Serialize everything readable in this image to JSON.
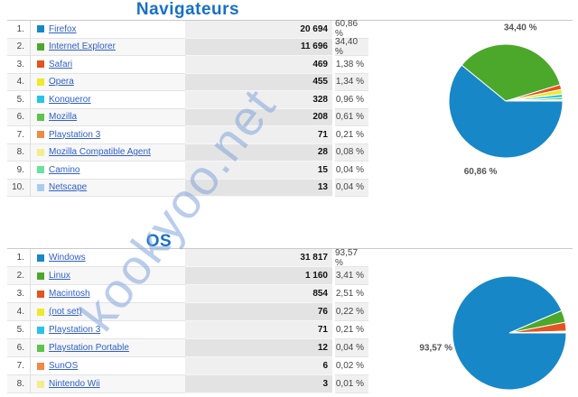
{
  "watermark": {
    "text": "kookyoo.net",
    "color": "rgba(129,164,218,0.55)"
  },
  "sections": [
    {
      "title": "Navigateurs",
      "rows": [
        {
          "rank": "1.",
          "name": "Firefox",
          "count": "20 694",
          "percent": "60,86 %",
          "color": "#1787C8"
        },
        {
          "rank": "2.",
          "name": "Internet Explorer",
          "count": "11 696",
          "percent": "34,40 %",
          "color": "#4CA82B"
        },
        {
          "rank": "3.",
          "name": "Safari",
          "count": "469",
          "percent": "1,38 %",
          "color": "#E55320"
        },
        {
          "rank": "4.",
          "name": "Opera",
          "count": "455",
          "percent": "1,34 %",
          "color": "#EEE929"
        },
        {
          "rank": "5.",
          "name": "Konqueror",
          "count": "328",
          "percent": "0,96 %",
          "color": "#28C4E8"
        },
        {
          "rank": "6.",
          "name": "Mozilla",
          "count": "208",
          "percent": "0,61 %",
          "color": "#5BC44D"
        },
        {
          "rank": "7.",
          "name": "Playstation 3",
          "count": "71",
          "percent": "0,21 %",
          "color": "#F18A47"
        },
        {
          "rank": "8.",
          "name": "Mozilla Compatible Agent",
          "count": "28",
          "percent": "0,08 %",
          "color": "#F2EE8C"
        },
        {
          "rank": "9.",
          "name": "Camino",
          "count": "15",
          "percent": "0,04 %",
          "color": "#66E39E"
        },
        {
          "rank": "10.",
          "name": "Netscape",
          "count": "13",
          "percent": "0,04 %",
          "color": "#A8CCF0"
        }
      ]
    },
    {
      "title": "OS",
      "rows": [
        {
          "rank": "1.",
          "name": "Windows",
          "count": "31 817",
          "percent": "93,57 %",
          "color": "#1787C8"
        },
        {
          "rank": "2.",
          "name": "Linux",
          "count": "1 160",
          "percent": "3,41 %",
          "color": "#4CA82B"
        },
        {
          "rank": "3.",
          "name": "Macintosh",
          "count": "854",
          "percent": "2,51 %",
          "color": "#E55320"
        },
        {
          "rank": "4.",
          "name": "(not set)",
          "count": "76",
          "percent": "0,22 %",
          "color": "#EEE929"
        },
        {
          "rank": "5.",
          "name": "Playstation 3",
          "count": "71",
          "percent": "0,21 %",
          "color": "#28C4E8"
        },
        {
          "rank": "6.",
          "name": "Playstation Portable",
          "count": "12",
          "percent": "0,04 %",
          "color": "#5BC44D"
        },
        {
          "rank": "7.",
          "name": "SunOS",
          "count": "6",
          "percent": "0,02 %",
          "color": "#F18A47"
        },
        {
          "rank": "8.",
          "name": "Nintendo Wii",
          "count": "3",
          "percent": "0,01 %",
          "color": "#F2EE8C"
        }
      ]
    }
  ],
  "chart_data": [
    {
      "type": "pie",
      "title": "Navigateurs",
      "categories": [
        "Firefox",
        "Internet Explorer",
        "Safari",
        "Opera",
        "Konqueror",
        "Mozilla",
        "Playstation 3",
        "Mozilla Compatible Agent",
        "Camino",
        "Netscape"
      ],
      "values": [
        20694,
        11696,
        469,
        455,
        328,
        208,
        71,
        28,
        15,
        13
      ],
      "percentages": [
        60.86,
        34.4,
        1.38,
        1.34,
        0.96,
        0.61,
        0.21,
        0.08,
        0.04,
        0.04
      ],
      "colors": [
        "#1787C8",
        "#4CA82B",
        "#E55320",
        "#EEE929",
        "#28C4E8",
        "#5BC44D",
        "#F18A47",
        "#F2EE8C",
        "#66E39E",
        "#A8CCF0"
      ],
      "callout_labels": [
        {
          "slice_index": 0,
          "text": "60,86 %"
        },
        {
          "slice_index": 1,
          "text": "34,40 %"
        }
      ],
      "start_angle_deg": 0,
      "direction": "clockwise",
      "legend_position": "table-left"
    },
    {
      "type": "pie",
      "title": "OS",
      "categories": [
        "Windows",
        "Linux",
        "Macintosh",
        "(not set)",
        "Playstation 3",
        "Playstation Portable",
        "SunOS",
        "Nintendo Wii"
      ],
      "values": [
        31817,
        1160,
        854,
        76,
        71,
        12,
        6,
        3
      ],
      "percentages": [
        93.57,
        3.41,
        2.51,
        0.22,
        0.21,
        0.04,
        0.02,
        0.01
      ],
      "colors": [
        "#1787C8",
        "#4CA82B",
        "#E55320",
        "#EEE929",
        "#28C4E8",
        "#5BC44D",
        "#F18A47",
        "#F2EE8C"
      ],
      "callout_labels": [
        {
          "slice_index": 0,
          "text": "93,57 %"
        }
      ],
      "start_angle_deg": 0,
      "direction": "clockwise",
      "legend_position": "table-left"
    }
  ]
}
